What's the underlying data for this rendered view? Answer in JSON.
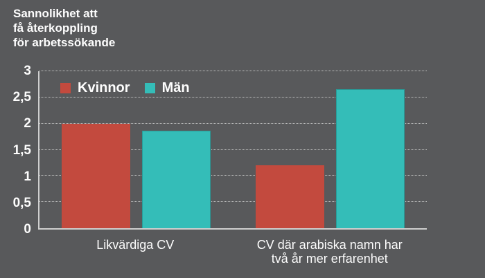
{
  "chart_data": {
    "type": "bar",
    "title": "Sannolikhet att\nfå återkoppling\nför arbetssökande",
    "categories": [
      "Likvärdiga CV",
      "CV där arabiska namn har\ntvå år mer erfarenhet"
    ],
    "series": [
      {
        "name": "Kvinnor",
        "color": "#c34a3e",
        "values": [
          2.0,
          1.2
        ]
      },
      {
        "name": "Män",
        "color": "#34bdb8",
        "values": [
          1.87,
          2.65
        ]
      }
    ],
    "ylim": [
      0,
      3
    ],
    "ytick_labels": [
      "0",
      "0,5",
      "1",
      "1,5",
      "2",
      "2,5",
      "3"
    ],
    "ytick_values": [
      0,
      0.5,
      1,
      1.5,
      2,
      2.5,
      3
    ],
    "grid": "horizontal dotted",
    "legend_position": "inside top-left",
    "background_color": "#58595b",
    "axis_color": "#cfcfcf",
    "text_color": "#fdfdfd"
  }
}
